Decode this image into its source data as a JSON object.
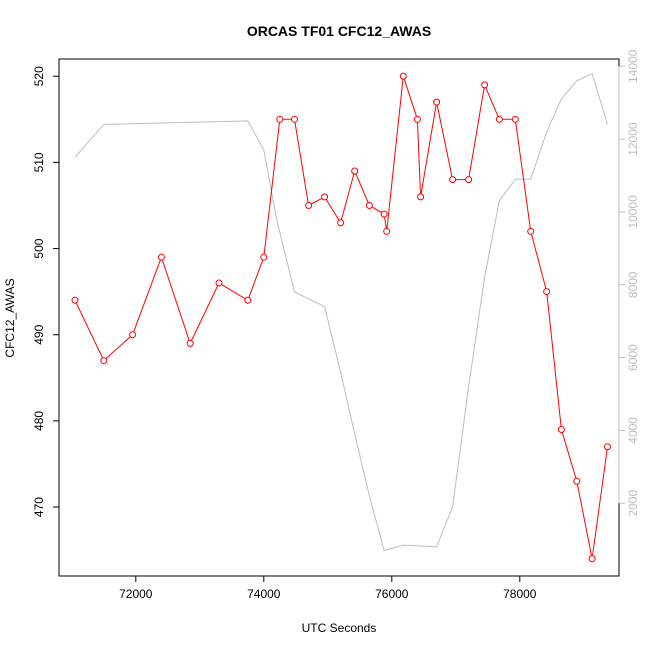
{
  "chart_data": {
    "type": "line",
    "title": "ORCAS TF01 CFC12_AWAS",
    "xlabel": "UTC Seconds",
    "ylabel": "CFC12_AWAS",
    "xlim": [
      70800,
      79550
    ],
    "ylim": [
      462,
      522
    ],
    "y2lim": [
      0,
      14200
    ],
    "x_ticks": [
      72000,
      74000,
      76000,
      78000
    ],
    "y_ticks": [
      470,
      480,
      490,
      500,
      510,
      520
    ],
    "y2_ticks": [
      2000,
      4000,
      6000,
      8000,
      10000,
      12000,
      14000
    ],
    "grid": false,
    "series": [
      {
        "color": "#ff0000",
        "marker": "open-circle",
        "axis": "left",
        "x": [
          71050,
          71500,
          71950,
          72400,
          72850,
          73300,
          73750,
          74000,
          74250,
          74480,
          74700,
          74950,
          75200,
          75420,
          75650,
          75880,
          75920,
          76180,
          76400,
          76450,
          76700,
          76950,
          77200,
          77450,
          77680,
          77930,
          78170,
          78420,
          78650,
          78890,
          79130,
          79370
        ],
        "y": [
          494,
          487,
          490,
          499,
          489,
          496,
          494,
          499,
          515,
          515,
          505,
          506,
          503,
          509,
          505,
          504,
          502,
          520,
          515,
          506,
          517,
          508,
          508,
          519,
          515,
          515,
          502,
          495,
          479,
          473,
          464,
          477
        ]
      },
      {
        "color": "#bebebe",
        "marker": "none",
        "axis": "right",
        "x": [
          71050,
          71500,
          73750,
          74000,
          74200,
          74480,
          74950,
          75200,
          75420,
          75650,
          75880,
          76180,
          76700,
          76950,
          77200,
          77450,
          77680,
          77930,
          78170,
          78420,
          78650,
          78890,
          79130,
          79370
        ],
        "y": [
          11500,
          12400,
          12500,
          11700,
          9800,
          7800,
          7400,
          5600,
          3900,
          2200,
          700,
          850,
          800,
          1900,
          5200,
          8200,
          10300,
          10900,
          10900,
          12200,
          13100,
          13600,
          13800,
          12400
        ]
      }
    ]
  }
}
